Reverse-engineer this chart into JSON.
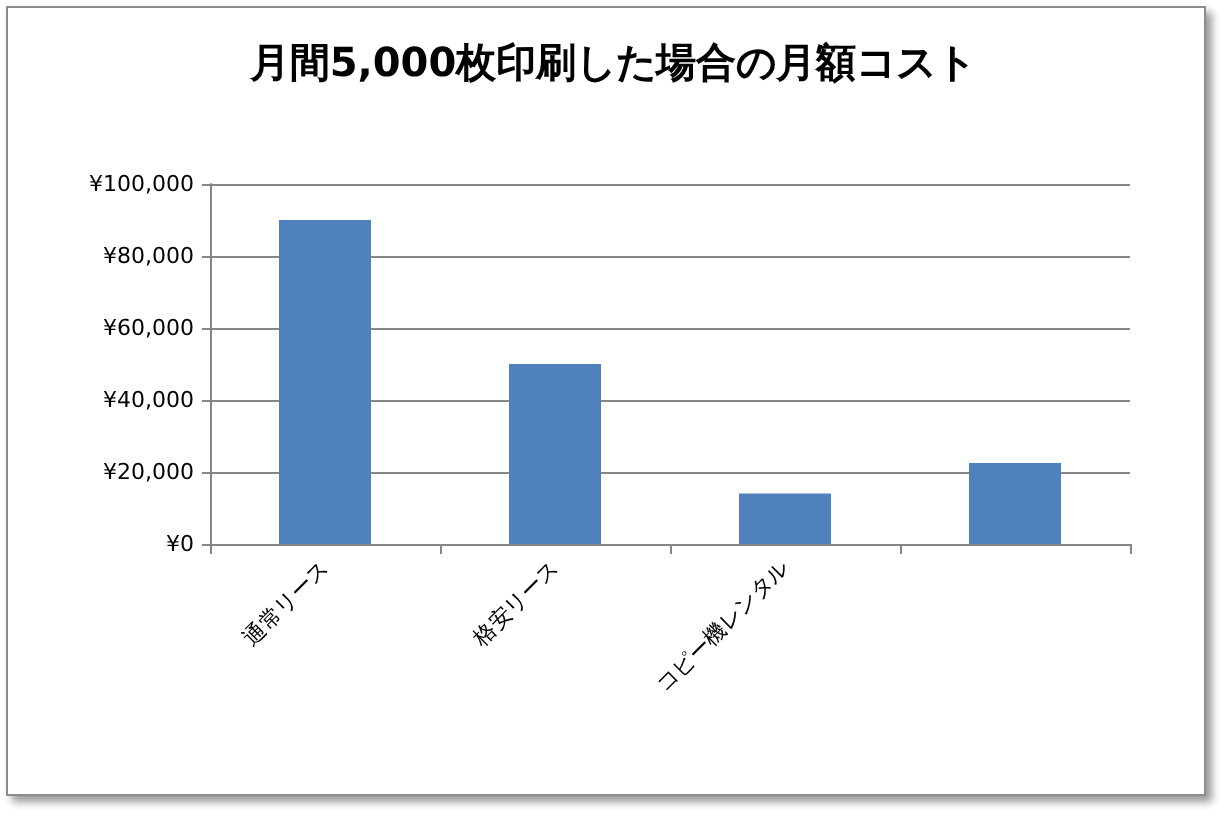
{
  "chart_data": {
    "type": "bar",
    "title": "月間5,000枚印刷した場合の月額コスト",
    "categories": [
      "通常リース",
      "格安リース",
      "コピー機レンタル",
      null
    ],
    "values": [
      90000,
      50000,
      14000,
      22500
    ],
    "color": "#4f81bd",
    "ylim": [
      0,
      100000
    ],
    "yticks": [
      {
        "value": 0,
        "label": "¥0"
      },
      {
        "value": 20000,
        "label": "¥20,000"
      },
      {
        "value": 40000,
        "label": "¥40,000"
      },
      {
        "value": 60000,
        "label": "¥60,000"
      },
      {
        "value": 80000,
        "label": "¥80,000"
      },
      {
        "value": 100000,
        "label": "¥100,000"
      }
    ],
    "grid": "y"
  }
}
